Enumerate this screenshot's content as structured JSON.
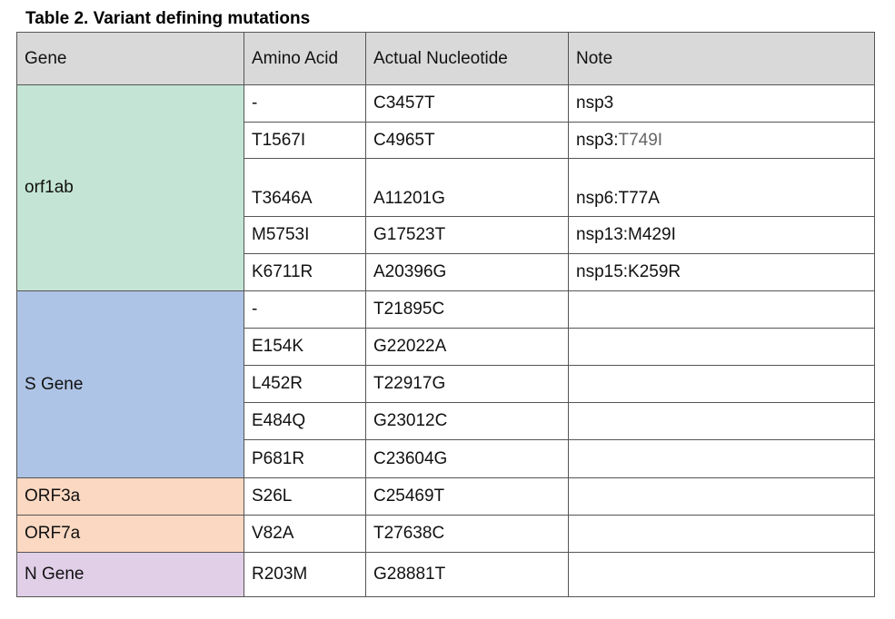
{
  "title": "Table 2. Variant defining mutations",
  "table": {
    "header": [
      "Gene",
      "Amino Acid",
      "Actual Nucleotide",
      "Note"
    ],
    "groups": [
      {
        "gene": "orf1ab",
        "rows": [
          [
            "-",
            "C3457T",
            "nsp3"
          ],
          [
            "T1567I",
            "C4965T",
            [
              "nsp3:",
              "T749I"
            ]
          ],
          [
            "T3646A",
            "A11201G",
            "nsp6:T77A"
          ],
          [
            "M5753I",
            "G17523T",
            "nsp13:M429I"
          ],
          [
            "K6711R",
            "A20396G",
            "nsp15:K259R"
          ]
        ]
      },
      {
        "gene": "S Gene",
        "rows": [
          [
            "-",
            "T21895C"
          ],
          [
            "E154K",
            "G22022A"
          ],
          [
            "L452R",
            "T22917G"
          ],
          [
            "E484Q",
            "G23012C"
          ],
          [
            "P681R",
            "C23604G"
          ]
        ]
      },
      {
        "gene": "ORF3a",
        "rows": [
          [
            "S26L",
            "C25469T"
          ]
        ]
      },
      {
        "gene": "ORF7a",
        "rows": [
          [
            "V82A",
            "T27638C"
          ]
        ]
      },
      {
        "gene": "N Gene",
        "rows": [
          [
            "R203M",
            "G28881T"
          ]
        ]
      }
    ]
  }
}
